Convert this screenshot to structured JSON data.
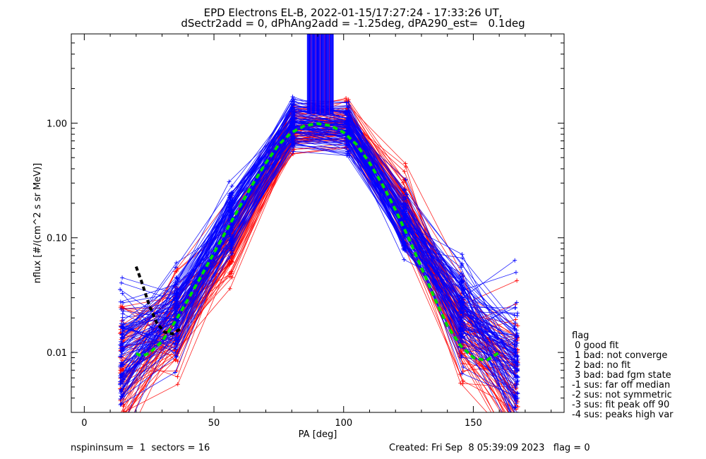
{
  "title_line1": "EPD Electrons EL-B, 2022-01-15/17:27:24 - 17:33:26 UT,",
  "title_line2": "dSectr2add = 0, dPhAng2add = -1.25deg, dPA290_est=   0.1deg",
  "footer_left": "nspininsum =  1  sectors = 16",
  "footer_right": "Created: Fri Sep  8 05:39:09 2023   flag = 0",
  "legend": {
    "title": "flag",
    "entries": [
      " 0 good fit",
      " 1 bad: not converge",
      " 2 bad: no fit",
      " 3 bad: bad fgm state",
      "-1 sus: far off median",
      "-2 sus: not symmetric",
      "-3 sus: fit peak off 90",
      "-4 sus: peaks high var"
    ]
  },
  "colors": {
    "blue_series": "#0000ff",
    "red_series": "#ff0000",
    "fit": "#00dd00",
    "fit_low": "#000000"
  },
  "chart_data": {
    "type": "line",
    "xlabel": "PA [deg]",
    "ylabel": "nflux [#/(cm^2 s sr MeV)]",
    "xlim": [
      -5,
      185
    ],
    "ylim": [
      0.003,
      6.0
    ],
    "yscale": "log",
    "x_ticks": [
      0,
      50,
      100,
      150
    ],
    "x_tick_labels": [
      "0",
      "50",
      "100",
      "150"
    ],
    "y_ticks": [
      0.01,
      0.1,
      1.0
    ],
    "y_tick_labels": [
      "0.01",
      "0.10",
      "1.00"
    ],
    "grid": false,
    "legend_position": "right",
    "sector_pa": [
      14.5,
      35.5,
      56.5,
      80.5,
      101.5,
      123.5,
      145.5,
      166.5
    ],
    "blue_median": [
      0.009,
      0.024,
      0.145,
      0.99,
      0.88,
      0.135,
      0.025,
      0.008
    ],
    "red_median": [
      0.007,
      0.017,
      0.09,
      0.89,
      0.98,
      0.17,
      0.016,
      0.006
    ],
    "spike": {
      "x_range": [
        86,
        96
      ],
      "y_range": [
        1.2,
        6.0
      ]
    },
    "fit_curve": {
      "x": [
        20,
        22,
        25,
        30,
        35,
        40,
        45,
        50,
        55,
        60,
        65,
        70,
        75,
        80,
        85,
        90,
        95,
        100,
        105,
        110,
        115,
        120,
        125,
        130,
        135,
        140,
        145,
        150,
        155,
        160
      ],
      "y": [
        0.0098,
        0.0093,
        0.0098,
        0.0125,
        0.0185,
        0.029,
        0.046,
        0.074,
        0.118,
        0.188,
        0.295,
        0.45,
        0.65,
        0.83,
        0.95,
        0.99,
        0.95,
        0.83,
        0.65,
        0.45,
        0.29,
        0.175,
        0.1,
        0.055,
        0.03,
        0.017,
        0.0115,
        0.009,
        0.0085,
        0.01
      ]
    },
    "black_fit_curve": {
      "x": [
        20,
        22,
        25,
        28,
        31,
        34,
        37
      ],
      "y": [
        0.056,
        0.042,
        0.026,
        0.018,
        0.015,
        0.0145,
        0.016
      ]
    }
  }
}
